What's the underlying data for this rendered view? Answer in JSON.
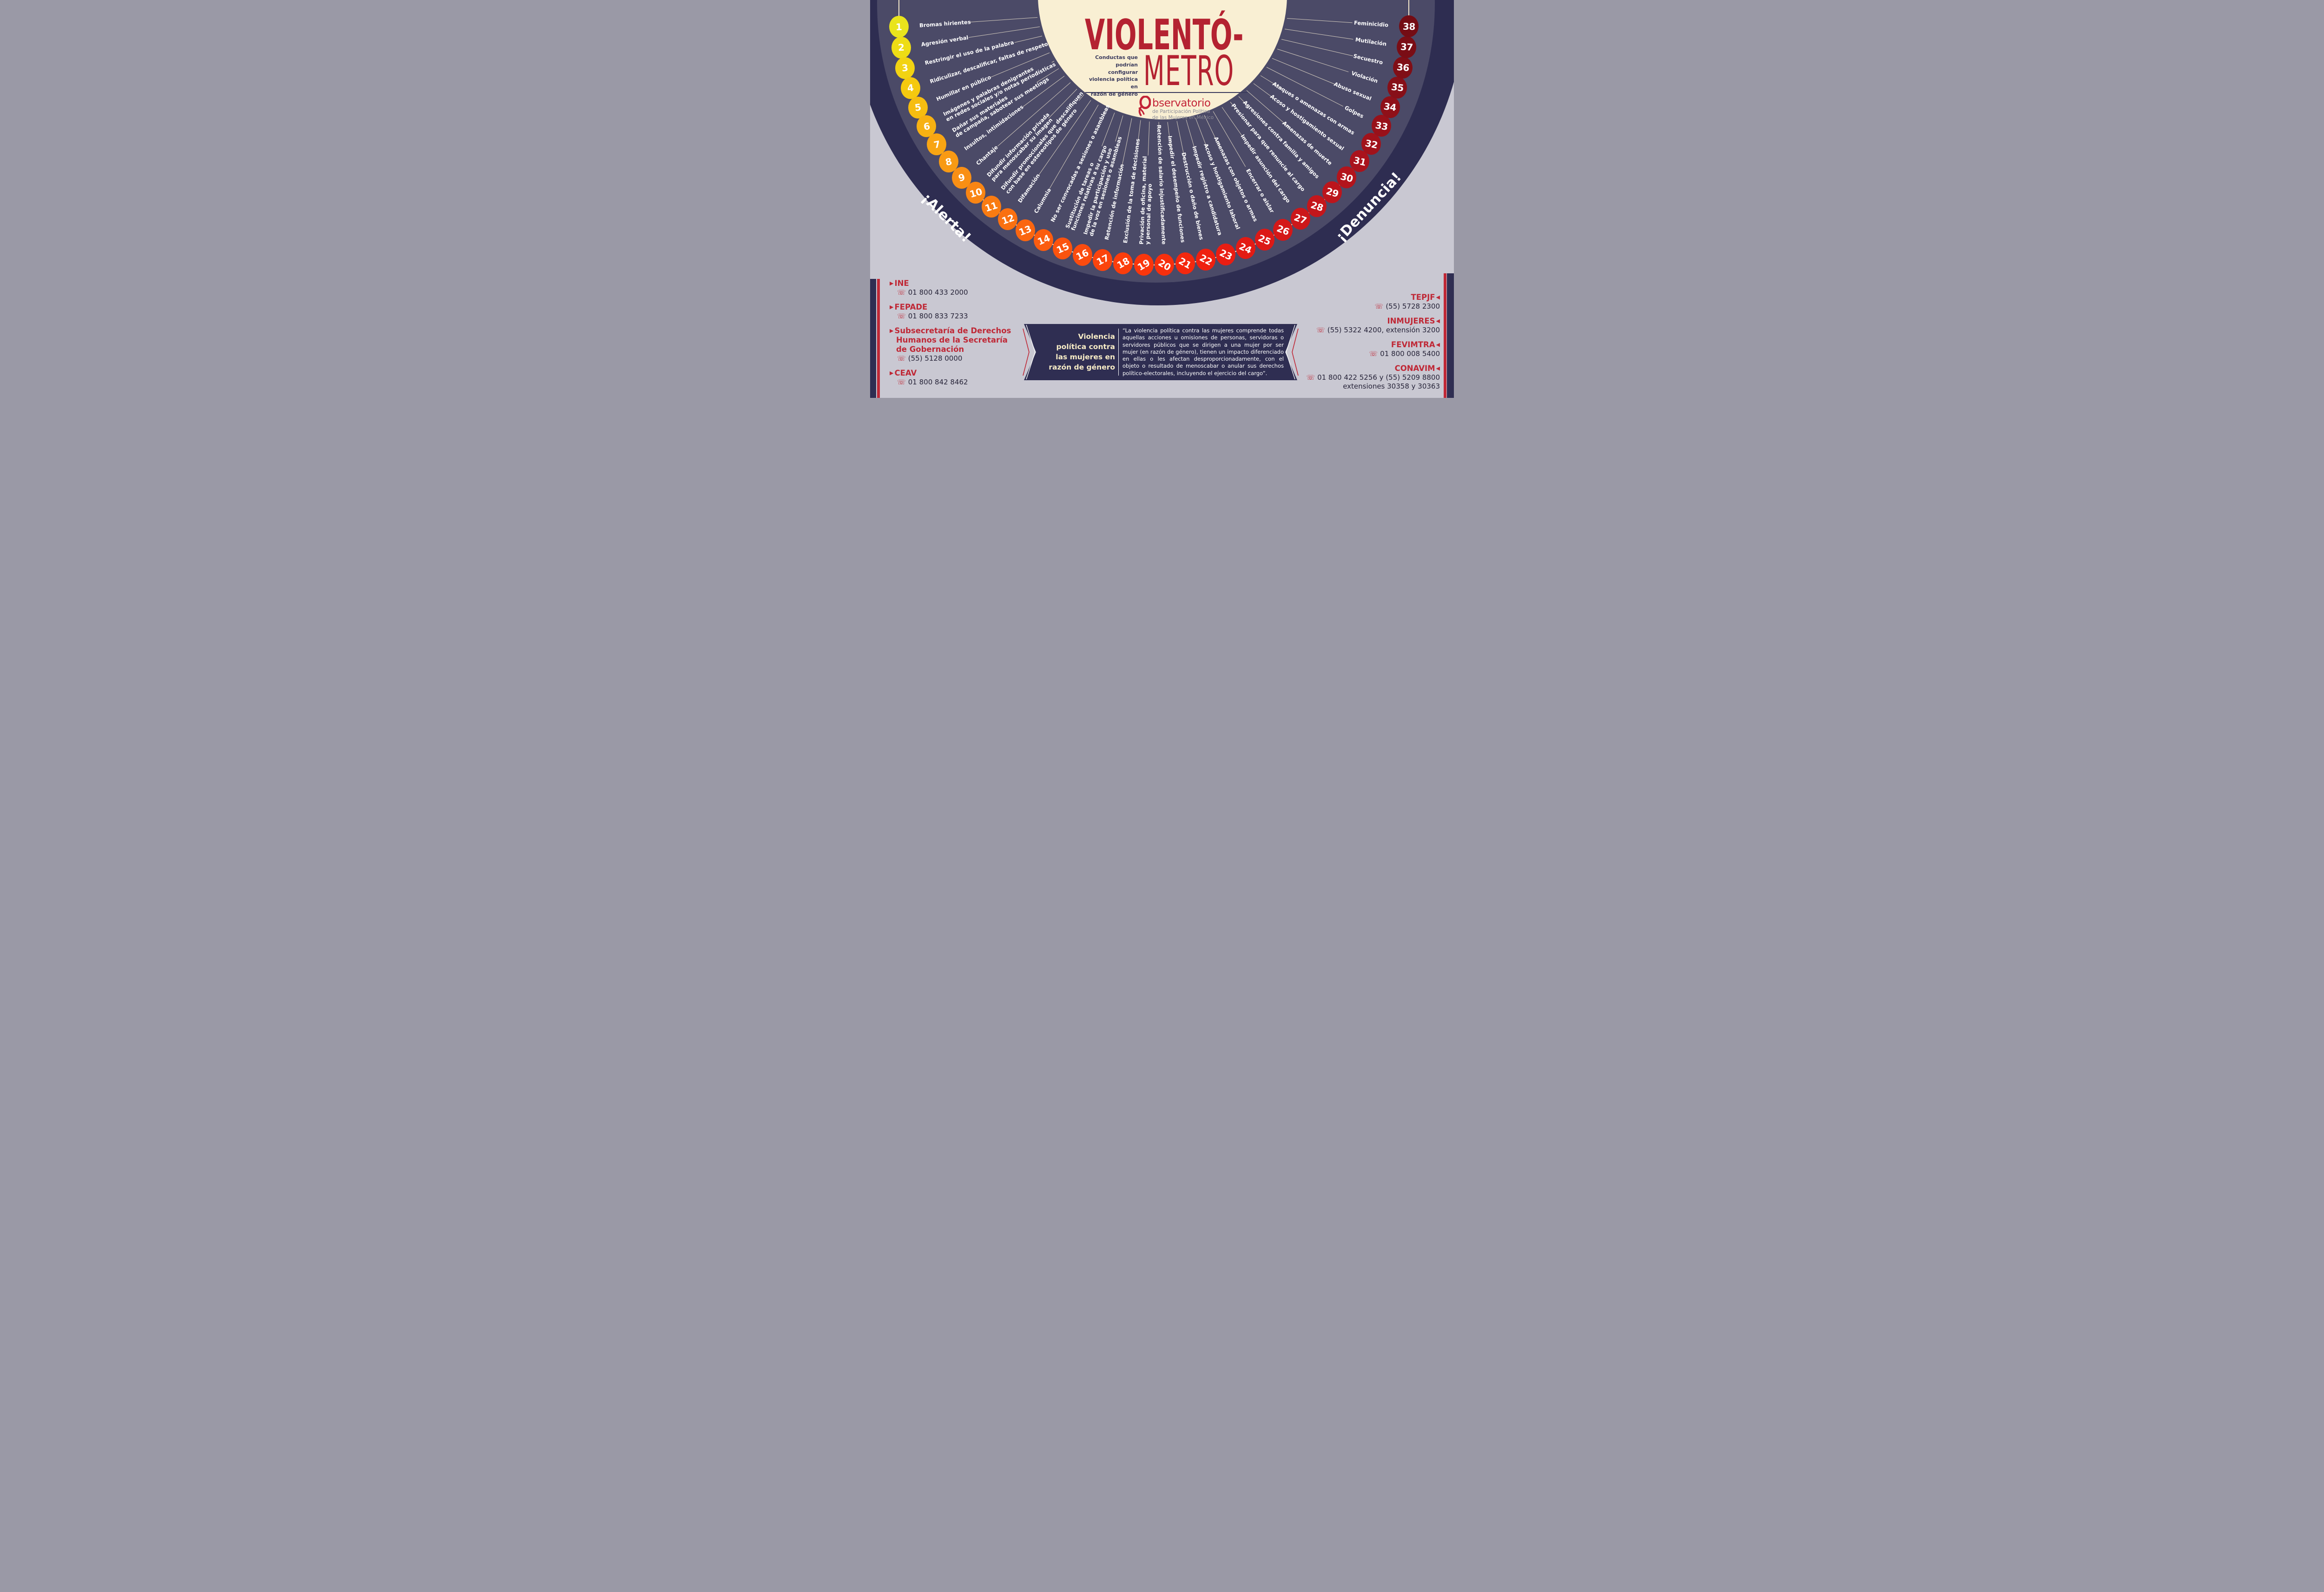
{
  "palette": {
    "background_gray": "#c9c8d2",
    "fan_outer_navy": "#2e2d51",
    "fan_inner_navy": "#4b4a67",
    "cream": "#f9efd3",
    "title_red": "#b42231",
    "subtitle_navy": "#3b3b5d",
    "contact_red": "#bf2836",
    "banner_navy": "#2f2e52"
  },
  "header": {
    "title_top": "VIOLENTÓ-",
    "title_bottom": "METRO",
    "subtitle_lines": [
      "Conductas que",
      "podrían configurar",
      "violencia política en",
      "razón de género"
    ]
  },
  "logo": {
    "brand": "Observatorio",
    "brand_rest": "bservatorio",
    "line1": "de Participación Política",
    "line2": "de las Mujeres en México"
  },
  "arc_words": {
    "left": "¡Alerta!",
    "right": "¡Denuncia!"
  },
  "scale": {
    "items": [
      {
        "n": 1,
        "color": "#e9e41c",
        "lines": [
          "Bromas hirientes"
        ]
      },
      {
        "n": 2,
        "color": "#eedd15",
        "lines": [
          "Agresión verbal"
        ]
      },
      {
        "n": 3,
        "color": "#f2d312",
        "lines": [
          "Restringir el uso de la palabra"
        ]
      },
      {
        "n": 4,
        "color": "#f5c90f",
        "lines": [
          "Ridiculizar, descalificar, faltas de respeto"
        ]
      },
      {
        "n": 5,
        "color": "#f6bd10",
        "lines": [
          "Humillar en público"
        ]
      },
      {
        "n": 6,
        "color": "#f7b112",
        "lines": [
          "Imágenes y palabras denigrantes",
          "en redes sociales y/o notas periodísticas"
        ]
      },
      {
        "n": 7,
        "color": "#f8a513",
        "lines": [
          "Dañar sus materiales",
          "de campaña, sabotear sus meetings"
        ]
      },
      {
        "n": 8,
        "color": "#f89a14",
        "lines": [
          "Insultos, intimidaciones"
        ]
      },
      {
        "n": 9,
        "color": "#f98f14",
        "lines": [
          "Chantaje"
        ]
      },
      {
        "n": 10,
        "color": "#f98513",
        "lines": [
          "Difundir información privada",
          "para menoscabar su imagen"
        ]
      },
      {
        "n": 11,
        "color": "#f97b12",
        "lines": [
          "Difundir promocionales que descalifiquen",
          "con base en estereotipos de género"
        ]
      },
      {
        "n": 12,
        "color": "#fa7011",
        "lines": [
          "Difamación"
        ]
      },
      {
        "n": 13,
        "color": "#fa6610",
        "lines": [
          "Calumnia"
        ]
      },
      {
        "n": 14,
        "color": "#fb5c0f",
        "lines": [
          "No ser convocadas a sesiones o asambleas"
        ]
      },
      {
        "n": 15,
        "color": "#fb530e",
        "lines": [
          "Sustitución de tareas o",
          "funciones relativas a su cargo"
        ]
      },
      {
        "n": 16,
        "color": "#fb4b0e",
        "lines": [
          "Impedir la participación y uso",
          "de la voz en sesiones o asambleas"
        ]
      },
      {
        "n": 17,
        "color": "#fb440d",
        "lines": [
          "Retención de información"
        ]
      },
      {
        "n": 18,
        "color": "#fb3d0c",
        "lines": [
          "Exclusión de la toma de decisiones"
        ]
      },
      {
        "n": 19,
        "color": "#fa360c",
        "lines": [
          "Privación de oficina, material",
          "y personal de apoyo"
        ]
      },
      {
        "n": 20,
        "color": "#f72f0d",
        "lines": [
          "Retención de salario injustificadamente"
        ]
      },
      {
        "n": 21,
        "color": "#f4280e",
        "lines": [
          "Impedir el desempeño de funciones"
        ]
      },
      {
        "n": 22,
        "color": "#ef2010",
        "lines": [
          "Destrucción o daño de bienes"
        ]
      },
      {
        "n": 23,
        "color": "#e91d12",
        "lines": [
          "Impedir registro a candidatura"
        ]
      },
      {
        "n": 24,
        "color": "#e31b14",
        "lines": [
          "Acoso y hostigamiento laboral"
        ]
      },
      {
        "n": 25,
        "color": "#dc1916",
        "lines": [
          "Amenazas con objetos o armas"
        ]
      },
      {
        "n": 26,
        "color": "#d41818",
        "lines": [
          "Encerrar o aislar"
        ]
      },
      {
        "n": 27,
        "color": "#cc171a",
        "lines": [
          "Impedir asunción del cargo"
        ]
      },
      {
        "n": 28,
        "color": "#c4161b",
        "lines": [
          "Presionar para que renuncie al cargo"
        ]
      },
      {
        "n": 29,
        "color": "#bc151c",
        "lines": [
          "Agresiones contra familia y amigos"
        ]
      },
      {
        "n": 30,
        "color": "#b3141c",
        "lines": [
          "Amenazas de muerte"
        ]
      },
      {
        "n": 31,
        "color": "#aa131c",
        "lines": [
          "Acoso y hostigamiento sexual"
        ]
      },
      {
        "n": 32,
        "color": "#a1121b",
        "lines": [
          "Ataques o amenazas con armas"
        ]
      },
      {
        "n": 33,
        "color": "#98111a",
        "lines": [
          "Golpes"
        ]
      },
      {
        "n": 34,
        "color": "#8f1019",
        "lines": [
          "Abuso sexual"
        ]
      },
      {
        "n": 35,
        "color": "#870f18",
        "lines": [
          "Violación"
        ]
      },
      {
        "n": 36,
        "color": "#800e16",
        "lines": [
          "Secuestro"
        ]
      },
      {
        "n": 37,
        "color": "#7a0d15",
        "lines": [
          "Mutilación"
        ]
      },
      {
        "n": 38,
        "color": "#740c14",
        "lines": [
          "Feminicidio"
        ]
      }
    ]
  },
  "banner": {
    "title_lines": [
      "Violencia",
      "política contra",
      "las mujeres en",
      "razón de género"
    ],
    "quote": "“La violencia política contra las mujeres comprende todas aquellas acciones u omisiones de personas, servidoras o servidores públicos que se dirigen a una mujer por ser mujer (en razón de género), tienen un impacto diferenciado en ellas o les afectan desproporcionadamente, con el objeto o resultado de menoscabar o anular sus derechos político-electorales, incluyendo el ejercicio del cargo”."
  },
  "contacts_left": [
    {
      "name_lines": [
        "INE"
      ],
      "phone": "01 800 433 2000"
    },
    {
      "name_lines": [
        "FEPADE"
      ],
      "phone": "01 800 833 7233"
    },
    {
      "name_lines": [
        "Subsecretaría de Derechos",
        "Humanos de la Secretaría",
        "de Gobernación"
      ],
      "phone": "(55) 5128 0000"
    },
    {
      "name_lines": [
        "CEAV"
      ],
      "phone": "01 800 842 8462"
    }
  ],
  "contacts_right": [
    {
      "name": "TEPJF",
      "phone_lines": [
        "(55) 5728 2300"
      ]
    },
    {
      "name": "INMUJERES",
      "phone_lines": [
        "(55) 5322 4200, extensión 3200"
      ]
    },
    {
      "name": "FEVIMTRA",
      "phone_lines": [
        "01 800 008 5400"
      ]
    },
    {
      "name": "CONAVIM",
      "phone_lines": [
        "01 800 422 5256 y (55) 5209 8800",
        "extensiones 30358 y 30363"
      ]
    }
  ]
}
